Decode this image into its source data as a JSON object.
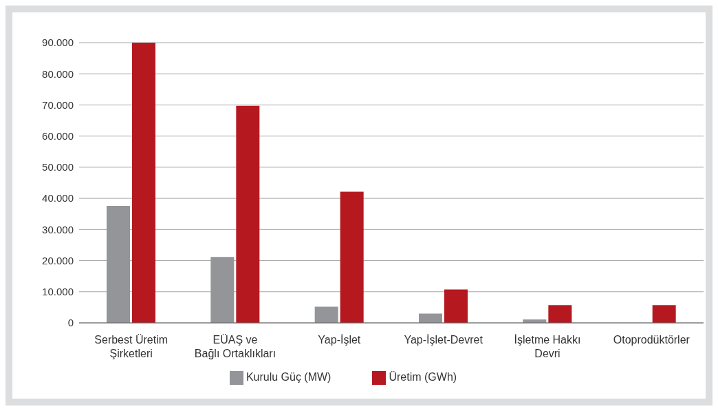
{
  "chart_data": {
    "type": "bar",
    "categories": [
      "Serbest Üretim\nŞirketleri",
      "EÜAŞ ve\nBağlı Ortaklıkları",
      "Yap-İşlet",
      "Yap-İşlet-Devret",
      "İşletme Hakkı\nDevri",
      "Otoprodüktörler"
    ],
    "series": [
      {
        "name": "Kurulu Güç (MW)",
        "color": "#939598",
        "values": [
          37600,
          21200,
          5200,
          3000,
          1100,
          null
        ]
      },
      {
        "name": "Üretim (GWh)",
        "color": "#b5191f",
        "values": [
          90000,
          69700,
          42100,
          10700,
          5700,
          5700
        ]
      }
    ],
    "ylim": [
      0,
      90000
    ],
    "yticks": [
      0,
      {
        "value": 10000,
        "label": "10.000"
      },
      {
        "value": 20000,
        "label": "20.000"
      },
      {
        "value": 30000,
        "label": "30.000"
      },
      {
        "value": 40000,
        "label": "40.000"
      },
      {
        "value": 50000,
        "label": "50.000"
      },
      {
        "value": 60000,
        "label": "60.000"
      },
      {
        "value": 70000,
        "label": "70.000"
      },
      {
        "value": 80000,
        "label": "80.000"
      },
      {
        "value": 90000,
        "label": "90.000"
      }
    ],
    "grid": "y",
    "legend": "bottom"
  }
}
